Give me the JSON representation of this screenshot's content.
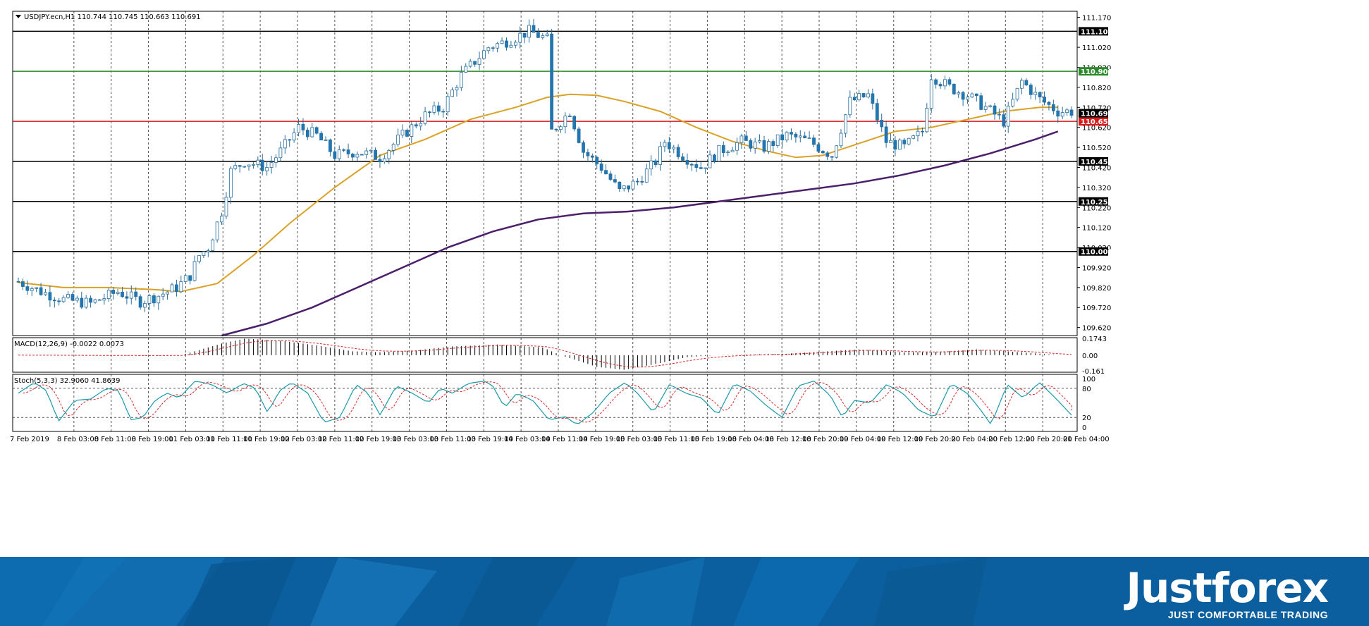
{
  "chart_data": [
    {
      "type": "candlestick",
      "title": "USDJPY.ecn,H1",
      "header_values": "110.744 110.745 110.663 110.691",
      "ylim": [
        109.58,
        111.2
      ],
      "price_ticks": [
        "111.170",
        "111.020",
        "110.920",
        "110.820",
        "110.720",
        "110.620",
        "110.520",
        "110.420",
        "110.320",
        "110.220",
        "110.120",
        "110.020",
        "109.920",
        "109.820",
        "109.720",
        "109.620"
      ],
      "levels": [
        {
          "price": 111.1,
          "label": "111.100",
          "color": "#000000"
        },
        {
          "price": 110.9,
          "label": "110.900",
          "color": "#2a8a2a"
        },
        {
          "price": 110.65,
          "label": "110.650",
          "color": "#d61c1c"
        },
        {
          "price": 110.45,
          "label": "110.450",
          "color": "#000000"
        },
        {
          "price": 110.25,
          "label": "110.250",
          "color": "#000000"
        },
        {
          "price": 110.0,
          "label": "110.000",
          "color": "#000000"
        }
      ],
      "current_price": {
        "price": 110.691,
        "label": "110.691"
      },
      "x_labels": [
        "7 Feb 2019",
        "8 Feb 03:00",
        "8 Feb 11:00",
        "8 Feb 19:00",
        "11 Feb 03:00",
        "11 Feb 11:00",
        "11 Feb 19:00",
        "12 Feb 03:00",
        "12 Feb 11:00",
        "12 Feb 19:00",
        "13 Feb 03:00",
        "13 Feb 11:00",
        "13 Feb 19:00",
        "14 Feb 03:00",
        "14 Feb 11:00",
        "14 Feb 19:00",
        "15 Feb 03:00",
        "15 Feb 11:00",
        "15 Feb 19:00",
        "18 Feb 04:00",
        "18 Feb 12:00",
        "18 Feb 20:00",
        "19 Feb 04:00",
        "19 Feb 12:00",
        "19 Feb 20:00",
        "20 Feb 04:00",
        "20 Feb 12:00",
        "20 Feb 20:00",
        "21 Feb 04:00"
      ],
      "keypoints": [
        [
          0,
          109.85
        ],
        [
          5,
          109.8
        ],
        [
          10,
          109.76
        ],
        [
          16,
          109.74
        ],
        [
          22,
          109.8
        ],
        [
          27,
          109.75
        ],
        [
          31,
          109.78
        ],
        [
          35,
          109.82
        ],
        [
          38,
          109.88
        ],
        [
          40,
          109.98
        ],
        [
          42,
          110.02
        ],
        [
          45,
          110.2
        ],
        [
          47,
          110.4
        ],
        [
          50,
          110.45
        ],
        [
          55,
          110.42
        ],
        [
          58,
          110.5
        ],
        [
          62,
          110.62
        ],
        [
          66,
          110.58
        ],
        [
          70,
          110.48
        ],
        [
          75,
          110.5
        ],
        [
          80,
          110.47
        ],
        [
          85,
          110.58
        ],
        [
          90,
          110.68
        ],
        [
          94,
          110.72
        ],
        [
          98,
          110.88
        ],
        [
          104,
          111.02
        ],
        [
          108,
          111.05
        ],
        [
          113,
          111.1
        ],
        [
          117,
          111.06
        ],
        [
          118,
          110.6
        ],
        [
          122,
          110.7
        ],
        [
          125,
          110.5
        ],
        [
          129,
          110.42
        ],
        [
          133,
          110.3
        ],
        [
          137,
          110.35
        ],
        [
          141,
          110.45
        ],
        [
          143,
          110.55
        ],
        [
          147,
          110.48
        ],
        [
          151,
          110.42
        ],
        [
          155,
          110.5
        ],
        [
          160,
          110.55
        ],
        [
          165,
          110.52
        ],
        [
          170,
          110.58
        ],
        [
          175,
          110.55
        ],
        [
          180,
          110.48
        ],
        [
          184,
          110.75
        ],
        [
          188,
          110.78
        ],
        [
          192,
          110.55
        ],
        [
          196,
          110.52
        ],
        [
          200,
          110.6
        ],
        [
          202,
          110.88
        ],
        [
          206,
          110.82
        ],
        [
          210,
          110.78
        ],
        [
          214,
          110.72
        ],
        [
          218,
          110.65
        ],
        [
          222,
          110.85
        ],
        [
          226,
          110.76
        ],
        [
          230,
          110.7
        ]
      ],
      "moving_averages": [
        {
          "color": "#d9a227",
          "points": [
            [
              0,
              109.845
            ],
            [
              10,
              109.82
            ],
            [
              20,
              109.82
            ],
            [
              30,
              109.81
            ],
            [
              36,
              109.8
            ],
            [
              44,
              109.84
            ],
            [
              52,
              109.98
            ],
            [
              60,
              110.14
            ],
            [
              70,
              110.32
            ],
            [
              80,
              110.48
            ],
            [
              90,
              110.56
            ],
            [
              100,
              110.66
            ],
            [
              110,
              110.72
            ],
            [
              117,
              110.77
            ],
            [
              122,
              110.785
            ],
            [
              128,
              110.78
            ],
            [
              134,
              110.75
            ],
            [
              142,
              110.7
            ],
            [
              150,
              110.62
            ],
            [
              158,
              110.55
            ],
            [
              166,
              110.5
            ],
            [
              172,
              110.47
            ],
            [
              178,
              110.48
            ],
            [
              186,
              110.54
            ],
            [
              194,
              110.6
            ],
            [
              202,
              110.62
            ],
            [
              210,
              110.66
            ],
            [
              218,
              110.7
            ],
            [
              226,
              110.72
            ],
            [
              230,
              110.72
            ]
          ]
        },
        {
          "color": "#4b1f6b",
          "points": [
            [
              45,
              109.58
            ],
            [
              55,
              109.64
            ],
            [
              65,
              109.72
            ],
            [
              75,
              109.82
            ],
            [
              85,
              109.92
            ],
            [
              95,
              110.02
            ],
            [
              105,
              110.1
            ],
            [
              115,
              110.16
            ],
            [
              125,
              110.19
            ],
            [
              135,
              110.2
            ],
            [
              145,
              110.22
            ],
            [
              155,
              110.25
            ],
            [
              165,
              110.28
            ],
            [
              175,
              110.31
            ],
            [
              185,
              110.34
            ],
            [
              195,
              110.38
            ],
            [
              205,
              110.43
            ],
            [
              215,
              110.49
            ],
            [
              225,
              110.56
            ],
            [
              230,
              110.6
            ]
          ]
        }
      ]
    },
    {
      "type": "bar",
      "title": "MACD(12,26,9) -0.0022 0.0073",
      "ylim": [
        -0.175,
        0.18
      ],
      "ticks": [
        {
          "v": 0.1743,
          "label": "0.1743"
        },
        {
          "v": 0.0,
          "label": "0.00"
        },
        {
          "v": -0.161,
          "label": "-0.161"
        }
      ],
      "keypoints": [
        [
          0,
          0.0
        ],
        [
          30,
          -0.005
        ],
        [
          36,
          0.0
        ],
        [
          45,
          0.12
        ],
        [
          50,
          0.17
        ],
        [
          58,
          0.15
        ],
        [
          66,
          0.1
        ],
        [
          74,
          0.04
        ],
        [
          80,
          0.03
        ],
        [
          88,
          0.05
        ],
        [
          96,
          0.09
        ],
        [
          106,
          0.11
        ],
        [
          116,
          0.08
        ],
        [
          120,
          0.0
        ],
        [
          128,
          -0.12
        ],
        [
          134,
          -0.15
        ],
        [
          140,
          -0.1
        ],
        [
          148,
          -0.02
        ],
        [
          154,
          0.0
        ],
        [
          170,
          0.015
        ],
        [
          186,
          0.06
        ],
        [
          196,
          0.03
        ],
        [
          202,
          0.03
        ],
        [
          212,
          0.06
        ],
        [
          222,
          0.03
        ],
        [
          230,
          0.0
        ]
      ]
    },
    {
      "type": "line",
      "title": "Stoch(5,3,3) 32.9060 41.8639",
      "ylim": [
        0,
        100
      ],
      "ticks": [
        {
          "v": 100,
          "label": "100"
        },
        {
          "v": 80,
          "label": "80"
        },
        {
          "v": 20,
          "label": "20"
        },
        {
          "v": 0,
          "label": "0"
        }
      ],
      "keypoints": [
        [
          0,
          70
        ],
        [
          4,
          92
        ],
        [
          7,
          75
        ],
        [
          10,
          12
        ],
        [
          14,
          55
        ],
        [
          18,
          58
        ],
        [
          22,
          80
        ],
        [
          25,
          75
        ],
        [
          28,
          15
        ],
        [
          31,
          20
        ],
        [
          34,
          55
        ],
        [
          37,
          70
        ],
        [
          40,
          60
        ],
        [
          44,
          95
        ],
        [
          48,
          88
        ],
        [
          52,
          70
        ],
        [
          56,
          90
        ],
        [
          59,
          80
        ],
        [
          62,
          30
        ],
        [
          65,
          75
        ],
        [
          68,
          92
        ],
        [
          72,
          70
        ],
        [
          76,
          10
        ],
        [
          80,
          20
        ],
        [
          84,
          88
        ],
        [
          87,
          70
        ],
        [
          90,
          25
        ],
        [
          94,
          85
        ],
        [
          98,
          70
        ],
        [
          102,
          50
        ],
        [
          105,
          80
        ],
        [
          108,
          70
        ],
        [
          112,
          90
        ],
        [
          116,
          95
        ],
        [
          118,
          85
        ],
        [
          121,
          40
        ],
        [
          124,
          70
        ],
        [
          128,
          55
        ],
        [
          132,
          15
        ],
        [
          136,
          22
        ],
        [
          139,
          5
        ],
        [
          143,
          30
        ],
        [
          147,
          70
        ],
        [
          151,
          92
        ],
        [
          154,
          70
        ],
        [
          158,
          30
        ],
        [
          162,
          88
        ],
        [
          166,
          70
        ],
        [
          170,
          60
        ],
        [
          174,
          25
        ],
        [
          178,
          90
        ],
        [
          182,
          75
        ],
        [
          186,
          45
        ],
        [
          190,
          20
        ],
        [
          194,
          85
        ],
        [
          198,
          95
        ],
        [
          202,
          65
        ],
        [
          205,
          20
        ],
        [
          208,
          55
        ],
        [
          212,
          50
        ],
        [
          216,
          88
        ],
        [
          220,
          70
        ],
        [
          224,
          35
        ],
        [
          228,
          20
        ],
        [
          232,
          90
        ],
        [
          236,
          70
        ],
        [
          239,
          40
        ],
        [
          242,
          5
        ],
        [
          246,
          88
        ],
        [
          250,
          60
        ],
        [
          254,
          92
        ],
        [
          258,
          60
        ],
        [
          262,
          25
        ]
      ]
    }
  ],
  "footer": {
    "brand": "Justforex",
    "tagline": "JUST COMFORTABLE TRADING"
  }
}
